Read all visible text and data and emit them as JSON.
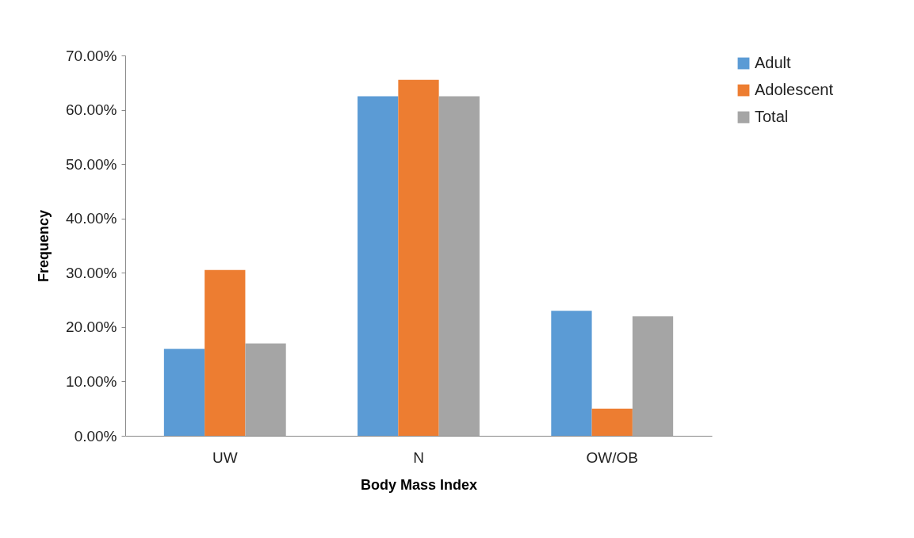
{
  "chart_data": {
    "type": "bar",
    "xlabel": "Body Mass Index",
    "ylabel": "Frequency",
    "categories": [
      "UW",
      "N",
      "OW/OB"
    ],
    "series": [
      {
        "name": "Adult",
        "color": "#5b9bd5",
        "values": [
          16,
          62.5,
          23
        ]
      },
      {
        "name": "Adolescent",
        "color": "#ed7d31",
        "values": [
          30.5,
          65.5,
          5
        ]
      },
      {
        "name": "Total",
        "color": "#a5a5a5",
        "values": [
          17,
          62.5,
          22
        ]
      }
    ],
    "ylim": [
      0,
      70
    ],
    "yticks": [
      {
        "value": 0,
        "label": "0.00%"
      },
      {
        "value": 10,
        "label": "10.00%"
      },
      {
        "value": 20,
        "label": "20.00%"
      },
      {
        "value": 30,
        "label": "30.00%"
      },
      {
        "value": 40,
        "label": "40.00%"
      },
      {
        "value": 50,
        "label": "50.00%"
      },
      {
        "value": 60,
        "label": "60.00%"
      },
      {
        "value": 70,
        "label": "70.00%"
      }
    ],
    "grid": false,
    "legend": "right"
  }
}
